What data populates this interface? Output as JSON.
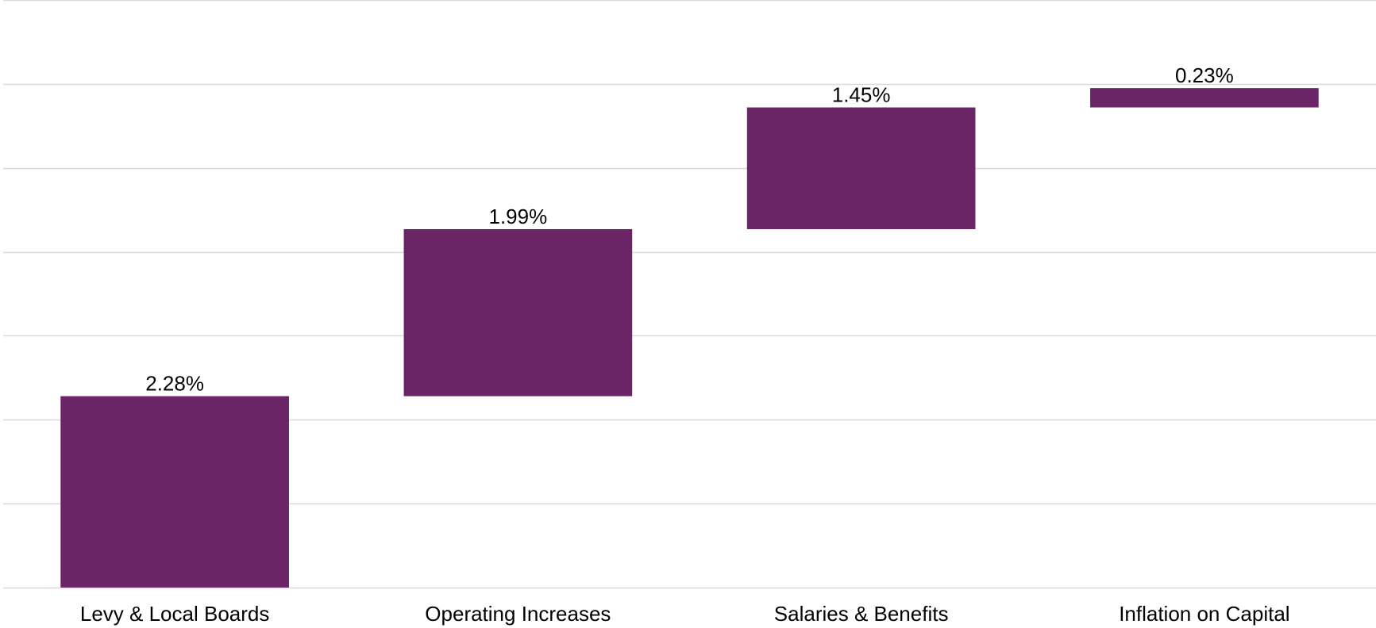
{
  "chart_data": {
    "type": "bar",
    "subtype": "waterfall",
    "categories": [
      "Levy & Local Boards",
      "Operating Increases",
      "Salaries & Benefits",
      "Inflation on Capital"
    ],
    "values": [
      2.28,
      1.99,
      1.45,
      0.23
    ],
    "data_labels": [
      "2.28%",
      "1.99%",
      "1.45%",
      "0.23%"
    ],
    "value_unit": "%",
    "ylim": [
      0,
      7
    ],
    "y_tick_interval": 1,
    "y_tick_labels_visible": false,
    "grid": true,
    "legend": "none",
    "bar_color": "#6b2466",
    "grid_color": "#d9d9d9",
    "title": "",
    "xlabel": "",
    "ylabel": ""
  }
}
